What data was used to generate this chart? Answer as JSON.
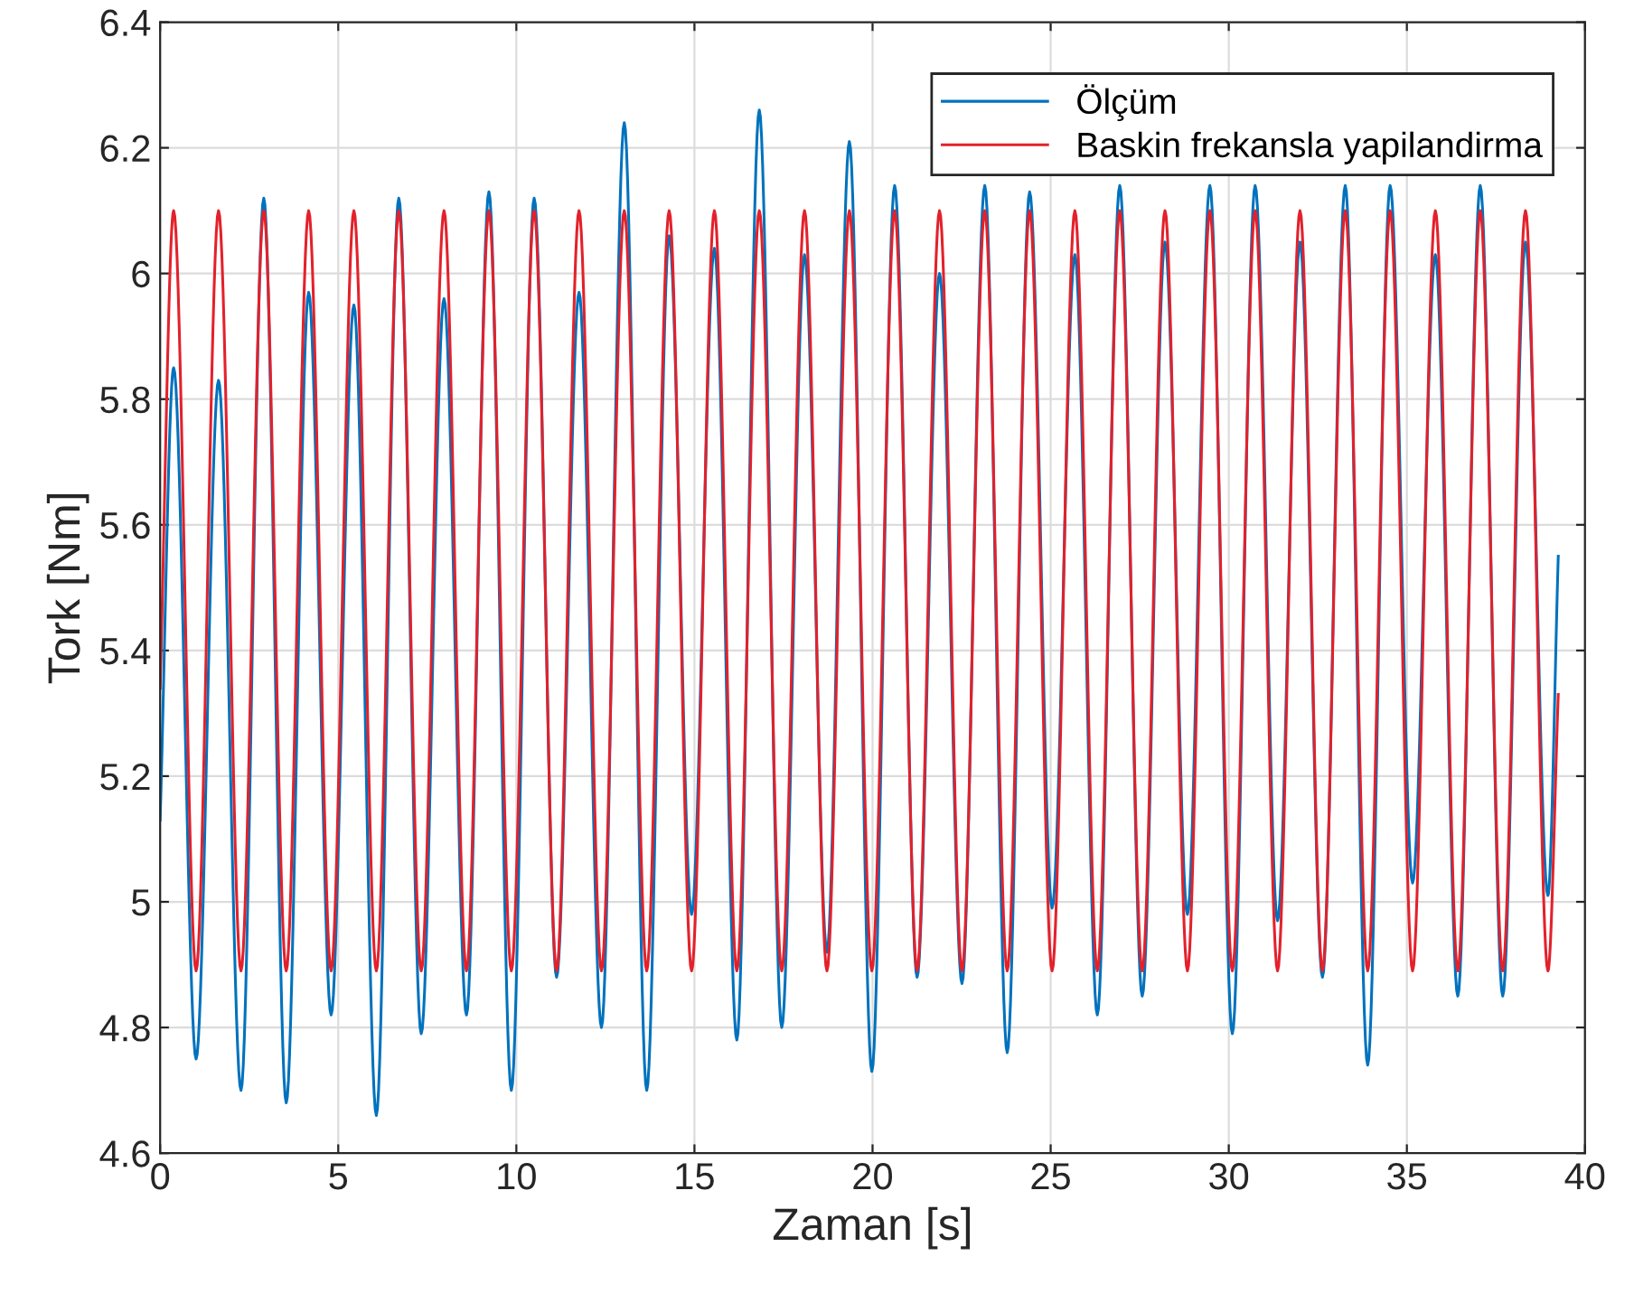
{
  "chart_data": {
    "type": "line",
    "xlabel": "Zaman [s]",
    "ylabel": "Tork [Nm]",
    "x": [
      0,
      0.38,
      1.01,
      1.64,
      2.27,
      2.91,
      3.54,
      4.17,
      4.8,
      5.44,
      6.07,
      6.7,
      7.33,
      7.97,
      8.6,
      9.23,
      9.86,
      10.5,
      11.13,
      11.76,
      12.39,
      13.03,
      13.66,
      14.29,
      14.92,
      15.56,
      16.19,
      16.82,
      17.45,
      18.09,
      18.72,
      19.35,
      19.98,
      20.62,
      21.25,
      21.88,
      22.51,
      23.15,
      23.78,
      24.41,
      25.04,
      25.68,
      26.31,
      26.94,
      27.57,
      28.21,
      28.84,
      29.47,
      30.1,
      30.74,
      31.37,
      32.0,
      32.63,
      33.27,
      33.9,
      34.53,
      35.16,
      35.8,
      36.43,
      37.06,
      37.69,
      38.33,
      38.96,
      39.25
    ],
    "series": [
      {
        "name": "Ölçüm",
        "color": "#0072bd",
        "values": [
          5.13,
          5.85,
          4.75,
          5.83,
          4.7,
          6.12,
          4.68,
          5.97,
          4.82,
          5.95,
          4.66,
          6.12,
          4.79,
          5.96,
          4.82,
          6.13,
          4.7,
          6.12,
          4.88,
          5.97,
          4.8,
          6.24,
          4.7,
          6.06,
          4.98,
          6.04,
          4.78,
          6.26,
          4.8,
          6.03,
          4.92,
          6.21,
          4.73,
          6.14,
          4.88,
          6.0,
          4.87,
          6.14,
          4.76,
          6.13,
          4.99,
          6.03,
          4.82,
          6.14,
          4.85,
          6.05,
          4.98,
          6.14,
          4.79,
          6.14,
          4.97,
          6.05,
          4.88,
          6.14,
          4.74,
          6.14,
          5.03,
          6.03,
          4.85,
          6.14,
          4.85,
          6.05,
          5.01,
          5.55
        ]
      },
      {
        "name": "Baskin frekansla yapilandirma",
        "color": "#e3212b",
        "values": [
          5.34,
          6.1,
          4.89,
          6.1,
          4.89,
          6.1,
          4.89,
          6.1,
          4.89,
          6.1,
          4.89,
          6.1,
          4.89,
          6.1,
          4.89,
          6.1,
          4.89,
          6.1,
          4.89,
          6.1,
          4.89,
          6.1,
          4.89,
          6.1,
          4.89,
          6.1,
          4.89,
          6.1,
          4.89,
          6.1,
          4.89,
          6.1,
          4.89,
          6.1,
          4.89,
          6.1,
          4.89,
          6.1,
          4.89,
          6.1,
          4.89,
          6.1,
          4.89,
          6.1,
          4.89,
          6.1,
          4.89,
          6.1,
          4.89,
          6.1,
          4.89,
          6.1,
          4.89,
          6.1,
          4.89,
          6.1,
          4.89,
          6.1,
          4.89,
          6.1,
          4.89,
          6.1,
          4.89,
          5.33
        ]
      }
    ],
    "xlim": [
      0,
      40
    ],
    "xticks": [
      0,
      5,
      10,
      15,
      20,
      25,
      30,
      35,
      40
    ],
    "ylim": [
      4.6,
      6.4
    ],
    "yticks": [
      4.6,
      4.8,
      5,
      5.2,
      5.4,
      5.6,
      5.8,
      6,
      6.2,
      6.4
    ],
    "grid": true,
    "legend": "top right",
    "marker": "none",
    "line_style": "solid"
  }
}
